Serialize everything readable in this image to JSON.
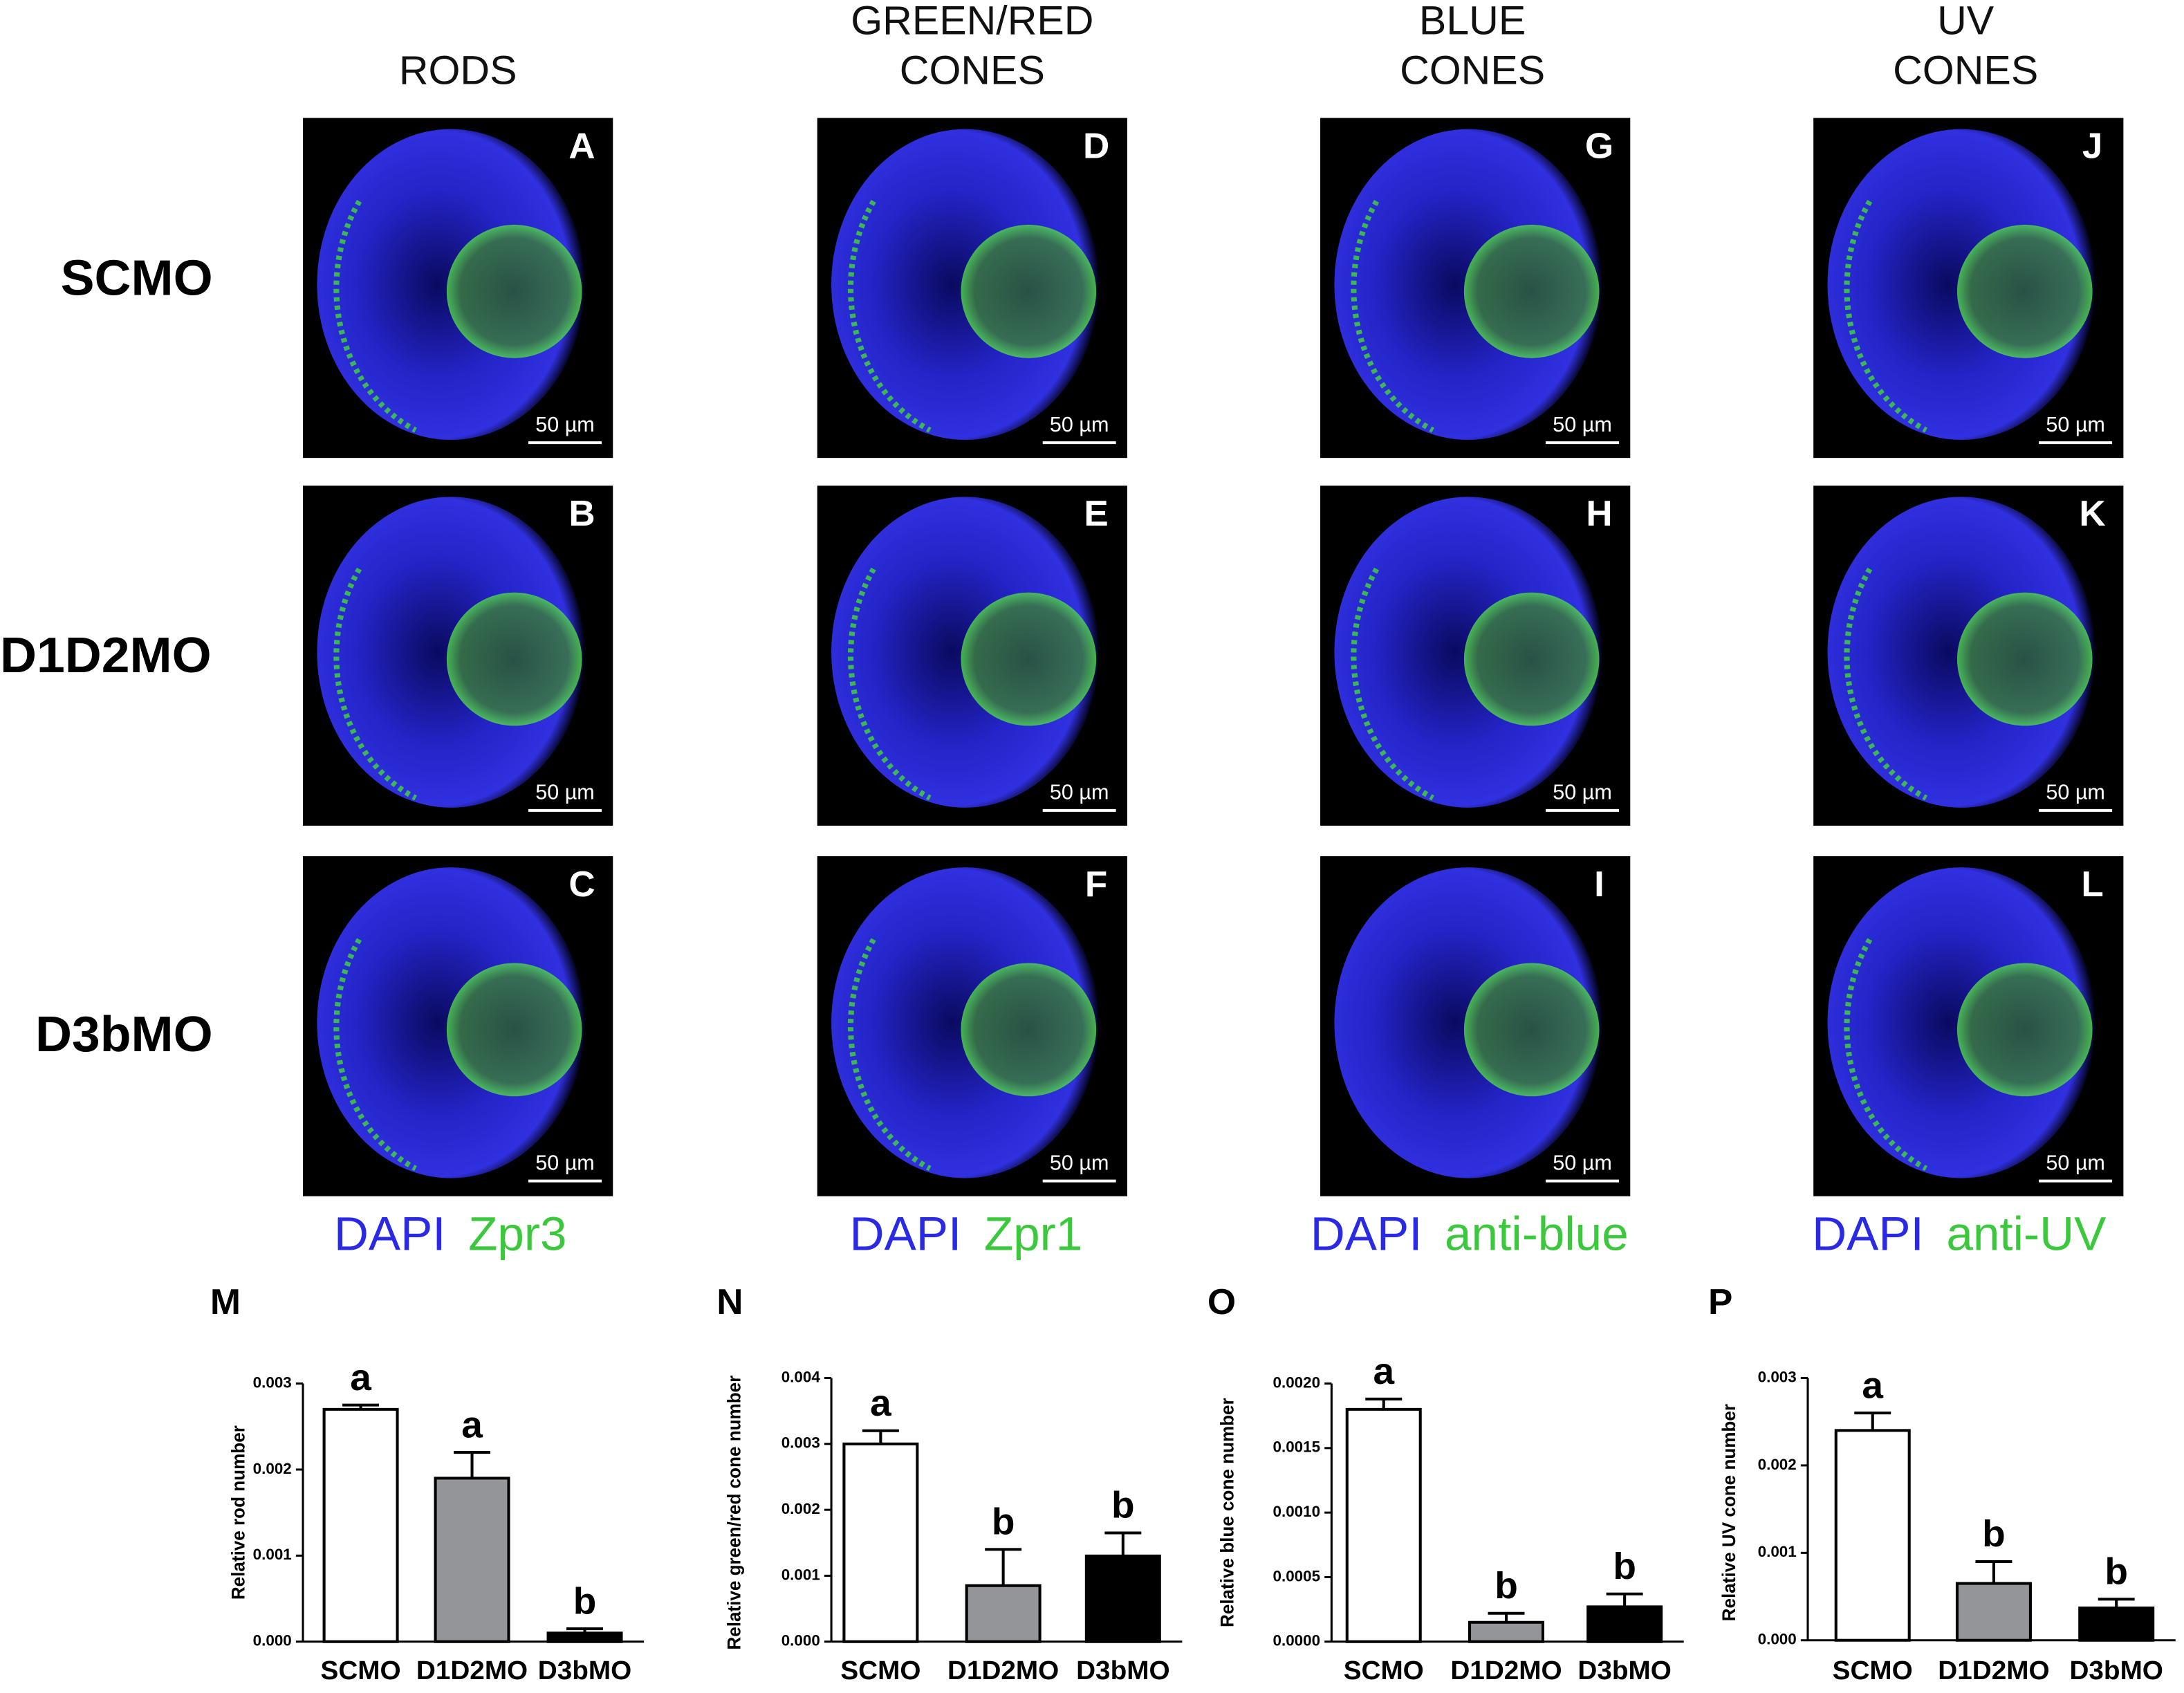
{
  "columns": [
    [
      "RODS"
    ],
    [
      "GREEN/RED",
      "CONES"
    ],
    [
      "BLUE",
      "CONES"
    ],
    [
      "UV",
      "CONES"
    ]
  ],
  "rows": [
    "SCMO",
    "D1D2MO",
    "D3bMO"
  ],
  "panel_letters": [
    [
      "A",
      "B",
      "C"
    ],
    [
      "D",
      "E",
      "F"
    ],
    [
      "G",
      "H",
      "I"
    ],
    [
      "J",
      "K",
      "L"
    ]
  ],
  "scale_bar": "50 µm",
  "stains": [
    {
      "dapi": "DAPI",
      "marker": "Zpr3"
    },
    {
      "dapi": "DAPI",
      "marker": "Zpr1"
    },
    {
      "dapi": "DAPI",
      "marker": "anti-blue"
    },
    {
      "dapi": "DAPI",
      "marker": "anti-UV"
    }
  ],
  "chart_data": [
    {
      "type": "bar",
      "letter": "M",
      "ylabel": "Relative rod number",
      "categories": [
        "SCMO",
        "D1D2MO",
        "D3bMO"
      ],
      "values": [
        0.0027,
        0.0019,
        0.0001
      ],
      "errors": [
        5e-05,
        0.0003,
        5e-05
      ],
      "annotations": [
        "a",
        "a",
        "b"
      ],
      "colors": [
        "#ffffff",
        "#939598",
        "#000000"
      ],
      "ylim": [
        0,
        0.003
      ],
      "yticks": [
        {
          "value": 0,
          "label": "0.000"
        },
        {
          "value": 0.001,
          "label": "0.001"
        },
        {
          "value": 0.002,
          "label": "0.002"
        },
        {
          "value": 0.003,
          "label": "0.003"
        }
      ]
    },
    {
      "type": "bar",
      "letter": "N",
      "ylabel": "Relative green/red cone number",
      "categories": [
        "SCMO",
        "D1D2MO",
        "D3bMO"
      ],
      "values": [
        0.003,
        0.00085,
        0.0013
      ],
      "errors": [
        0.0002,
        0.00055,
        0.00035
      ],
      "annotations": [
        "a",
        "b",
        "b"
      ],
      "colors": [
        "#ffffff",
        "#939598",
        "#000000"
      ],
      "ylim": [
        0,
        0.004
      ],
      "yticks": [
        {
          "value": 0,
          "label": "0.000"
        },
        {
          "value": 0.001,
          "label": "0.001"
        },
        {
          "value": 0.002,
          "label": "0.002"
        },
        {
          "value": 0.003,
          "label": "0.003"
        },
        {
          "value": 0.004,
          "label": "0.004"
        }
      ]
    },
    {
      "type": "bar",
      "letter": "O",
      "ylabel": "Relative blue cone number",
      "categories": [
        "SCMO",
        "D1D2MO",
        "D3bMO"
      ],
      "values": [
        0.0018,
        0.00015,
        0.00027
      ],
      "errors": [
        8e-05,
        7e-05,
        0.0001
      ],
      "annotations": [
        "a",
        "b",
        "b"
      ],
      "colors": [
        "#ffffff",
        "#939598",
        "#000000"
      ],
      "ylim": [
        0,
        0.002
      ],
      "yticks": [
        {
          "value": 0,
          "label": "0.0000"
        },
        {
          "value": 0.0005,
          "label": "0.0005"
        },
        {
          "value": 0.001,
          "label": "0.0010"
        },
        {
          "value": 0.0015,
          "label": "0.0015"
        },
        {
          "value": 0.002,
          "label": "0.0020"
        }
      ]
    },
    {
      "type": "bar",
      "letter": "P",
      "ylabel": "Relative UV cone number",
      "categories": [
        "SCMO",
        "D1D2MO",
        "D3bMO"
      ],
      "values": [
        0.0024,
        0.00065,
        0.00037
      ],
      "errors": [
        0.0002,
        0.00025,
        0.0001
      ],
      "annotations": [
        "a",
        "b",
        "b"
      ],
      "colors": [
        "#ffffff",
        "#939598",
        "#000000"
      ],
      "ylim": [
        0,
        0.003
      ],
      "yticks": [
        {
          "value": 0,
          "label": "0.000"
        },
        {
          "value": 0.001,
          "label": "0.001"
        },
        {
          "value": 0.002,
          "label": "0.002"
        },
        {
          "value": 0.003,
          "label": "0.003"
        }
      ]
    }
  ]
}
